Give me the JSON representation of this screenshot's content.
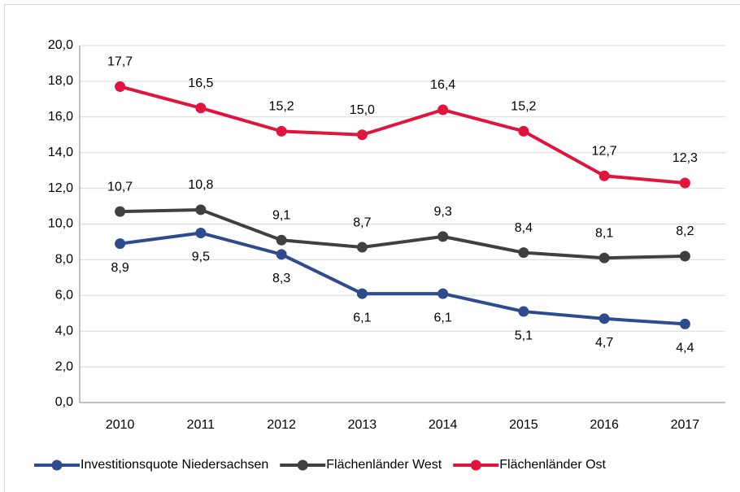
{
  "chart_data": {
    "type": "line",
    "categories": [
      "2010",
      "2011",
      "2012",
      "2013",
      "2014",
      "2015",
      "2016",
      "2017"
    ],
    "series": [
      {
        "name": "Investitionsquote Niedersachsen",
        "color": "#2f4b8f",
        "values": [
          8.9,
          9.5,
          8.3,
          6.1,
          6.1,
          5.1,
          4.7,
          4.4
        ],
        "value_labels": [
          "8,9",
          "9,5",
          "8,3",
          "6,1",
          "6,1",
          "5,1",
          "4,7",
          "4,4"
        ]
      },
      {
        "name": "Flächenländer West",
        "color": "#404040",
        "values": [
          10.7,
          10.8,
          9.1,
          8.7,
          9.3,
          8.4,
          8.1,
          8.2
        ],
        "value_labels": [
          "10,7",
          "10,8",
          "9,1",
          "8,7",
          "9,3",
          "8,4",
          "8,1",
          "8,2"
        ]
      },
      {
        "name": "Flächenländer Ost",
        "color": "#e0143c",
        "values": [
          17.7,
          16.5,
          15.2,
          15.0,
          16.4,
          15.2,
          12.7,
          12.3
        ],
        "value_labels": [
          "17,7",
          "16,5",
          "15,2",
          "15,0",
          "16,4",
          "15,2",
          "12,7",
          "12,3"
        ]
      }
    ],
    "ylim": [
      0,
      20
    ],
    "yticks": [
      {
        "value": 0,
        "label": "0,0"
      },
      {
        "value": 2,
        "label": "2,0"
      },
      {
        "value": 4,
        "label": "4,0"
      },
      {
        "value": 6,
        "label": "6,0"
      },
      {
        "value": 8,
        "label": "8,0"
      },
      {
        "value": 10,
        "label": "10,0"
      },
      {
        "value": 12,
        "label": "12,0"
      },
      {
        "value": 14,
        "label": "14,0"
      },
      {
        "value": 16,
        "label": "16,0"
      },
      {
        "value": 18,
        "label": "18,0"
      },
      {
        "value": 20,
        "label": "20,0"
      }
    ],
    "grid": true,
    "legend": "bottom"
  }
}
